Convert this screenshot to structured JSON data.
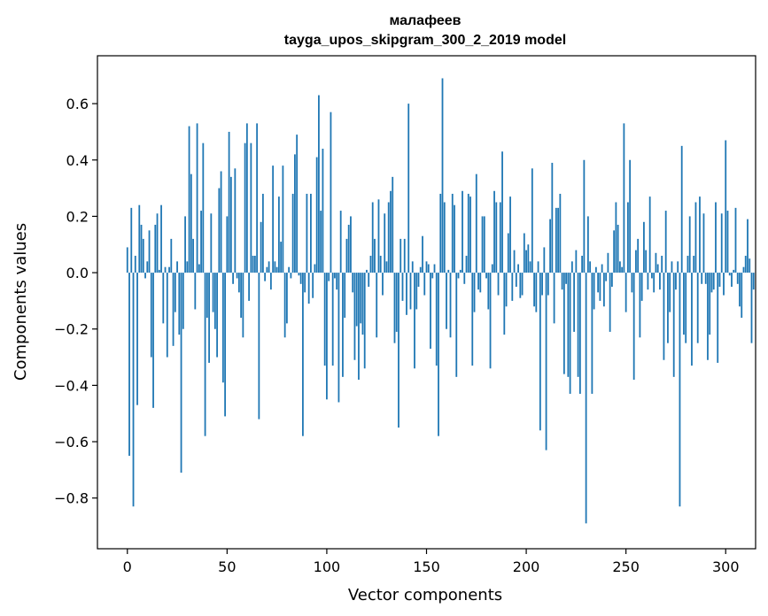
{
  "chart_data": {
    "type": "bar",
    "title": "малафеев",
    "subtitle": "tayga_upos_skipgram_300_2_2019 model",
    "xlabel": "Vector components",
    "ylabel": "Components values",
    "xlim": [
      -15,
      315
    ],
    "ylim": [
      -0.98,
      0.77
    ],
    "xticks": [
      0,
      50,
      100,
      150,
      200,
      250,
      300
    ],
    "xtick_labels": [
      "0",
      "50",
      "100",
      "150",
      "200",
      "250",
      "300"
    ],
    "yticks": [
      -0.8,
      -0.6,
      -0.4,
      -0.2,
      0.0,
      0.2,
      0.4,
      0.6
    ],
    "ytick_labels": [
      "−0.8",
      "−0.6",
      "−0.4",
      "−0.2",
      "0.0",
      "0.2",
      "0.4",
      "0.6"
    ],
    "grid": false,
    "bar_color": "#1f77b4",
    "values": [
      0.09,
      -0.65,
      0.23,
      -0.83,
      0.06,
      -0.47,
      0.24,
      0.17,
      0.12,
      -0.02,
      0.04,
      0.15,
      -0.3,
      -0.48,
      0.17,
      0.21,
      0.01,
      0.24,
      -0.18,
      0.02,
      -0.3,
      0.02,
      0.12,
      -0.26,
      -0.14,
      0.04,
      -0.22,
      -0.71,
      -0.2,
      0.2,
      0.04,
      0.52,
      0.35,
      0.12,
      -0.13,
      0.53,
      0.03,
      0.22,
      0.46,
      -0.58,
      -0.16,
      -0.32,
      0.21,
      -0.14,
      -0.2,
      -0.3,
      0.3,
      0.36,
      -0.39,
      -0.51,
      0.2,
      0.5,
      0.34,
      -0.04,
      0.37,
      -0.02,
      -0.07,
      -0.16,
      -0.23,
      0.46,
      0.53,
      -0.1,
      0.46,
      0.06,
      0.06,
      0.53,
      -0.52,
      0.18,
      0.28,
      -0.03,
      0.02,
      0.04,
      -0.06,
      0.38,
      0.04,
      0.02,
      0.27,
      0.11,
      0.38,
      -0.23,
      -0.18,
      0.02,
      -0.02,
      0.28,
      0.42,
      0.49,
      -0.01,
      -0.04,
      -0.58,
      -0.07,
      0.28,
      -0.11,
      0.28,
      -0.09,
      0.03,
      0.41,
      0.63,
      0.22,
      0.44,
      -0.33,
      -0.45,
      -0.03,
      0.57,
      -0.33,
      -0.02,
      -0.06,
      -0.46,
      0.22,
      -0.37,
      -0.16,
      0.12,
      0.17,
      0.2,
      -0.07,
      -0.31,
      -0.19,
      -0.38,
      -0.18,
      -0.22,
      -0.34,
      0.01,
      -0.05,
      0.06,
      0.25,
      0.12,
      -0.23,
      0.26,
      0.06,
      -0.08,
      0.21,
      0.04,
      0.25,
      0.29,
      0.34,
      -0.25,
      -0.21,
      -0.55,
      0.12,
      -0.1,
      0.12,
      -0.15,
      0.6,
      -0.13,
      0.04,
      -0.34,
      -0.13,
      -0.05,
      0.02,
      0.13,
      -0.08,
      0.04,
      0.03,
      -0.27,
      -0.02,
      0.03,
      -0.33,
      -0.58,
      0.28,
      0.69,
      0.25,
      -0.2,
      0.01,
      -0.23,
      0.28,
      0.24,
      -0.37,
      -0.02,
      0.01,
      0.29,
      -0.04,
      0.06,
      0.28,
      0.27,
      -0.33,
      -0.14,
      0.35,
      -0.06,
      -0.07,
      0.2,
      0.2,
      -0.02,
      -0.13,
      -0.34,
      0.03,
      0.29,
      0.25,
      -0.08,
      0.25,
      0.43,
      -0.22,
      -0.12,
      0.14,
      0.27,
      -0.1,
      0.08,
      -0.05,
      0.03,
      -0.09,
      -0.08,
      0.14,
      0.08,
      0.1,
      0.04,
      0.37,
      -0.12,
      -0.14,
      0.04,
      -0.56,
      -0.08,
      0.09,
      -0.63,
      -0.08,
      0.19,
      0.39,
      -0.18,
      0.23,
      0.23,
      0.28,
      -0.06,
      -0.36,
      -0.04,
      -0.37,
      -0.43,
      0.04,
      -0.21,
      0.08,
      -0.37,
      -0.43,
      0.06,
      0.4,
      -0.89,
      0.2,
      0.04,
      -0.43,
      -0.13,
      0.02,
      -0.07,
      -0.1,
      0.03,
      -0.12,
      -0.03,
      0.07,
      -0.21,
      -0.05,
      0.15,
      0.25,
      0.17,
      0.04,
      0.02,
      0.53,
      -0.14,
      0.25,
      0.4,
      -0.07,
      -0.38,
      0.08,
      0.12,
      -0.23,
      -0.1,
      0.18,
      0.08,
      -0.06,
      0.27,
      -0.02,
      -0.07,
      0.07,
      0.03,
      -0.06,
      0.06,
      -0.31,
      0.22,
      -0.25,
      -0.14,
      0.04,
      -0.37,
      -0.06,
      0.04,
      -0.83,
      0.45,
      -0.22,
      -0.25,
      0.06,
      0.2,
      -0.33,
      0.06,
      0.25,
      -0.25,
      0.27,
      -0.04,
      0.21,
      -0.04,
      -0.31,
      -0.22,
      -0.07,
      -0.06,
      0.25,
      -0.32,
      -0.05,
      0.21,
      -0.08,
      0.47,
      0.22,
      -0.01,
      -0.05,
      0.01,
      0.23,
      -0.04,
      -0.12,
      -0.16,
      0.02,
      0.06,
      0.19,
      0.05,
      -0.25,
      -0.06
    ]
  }
}
